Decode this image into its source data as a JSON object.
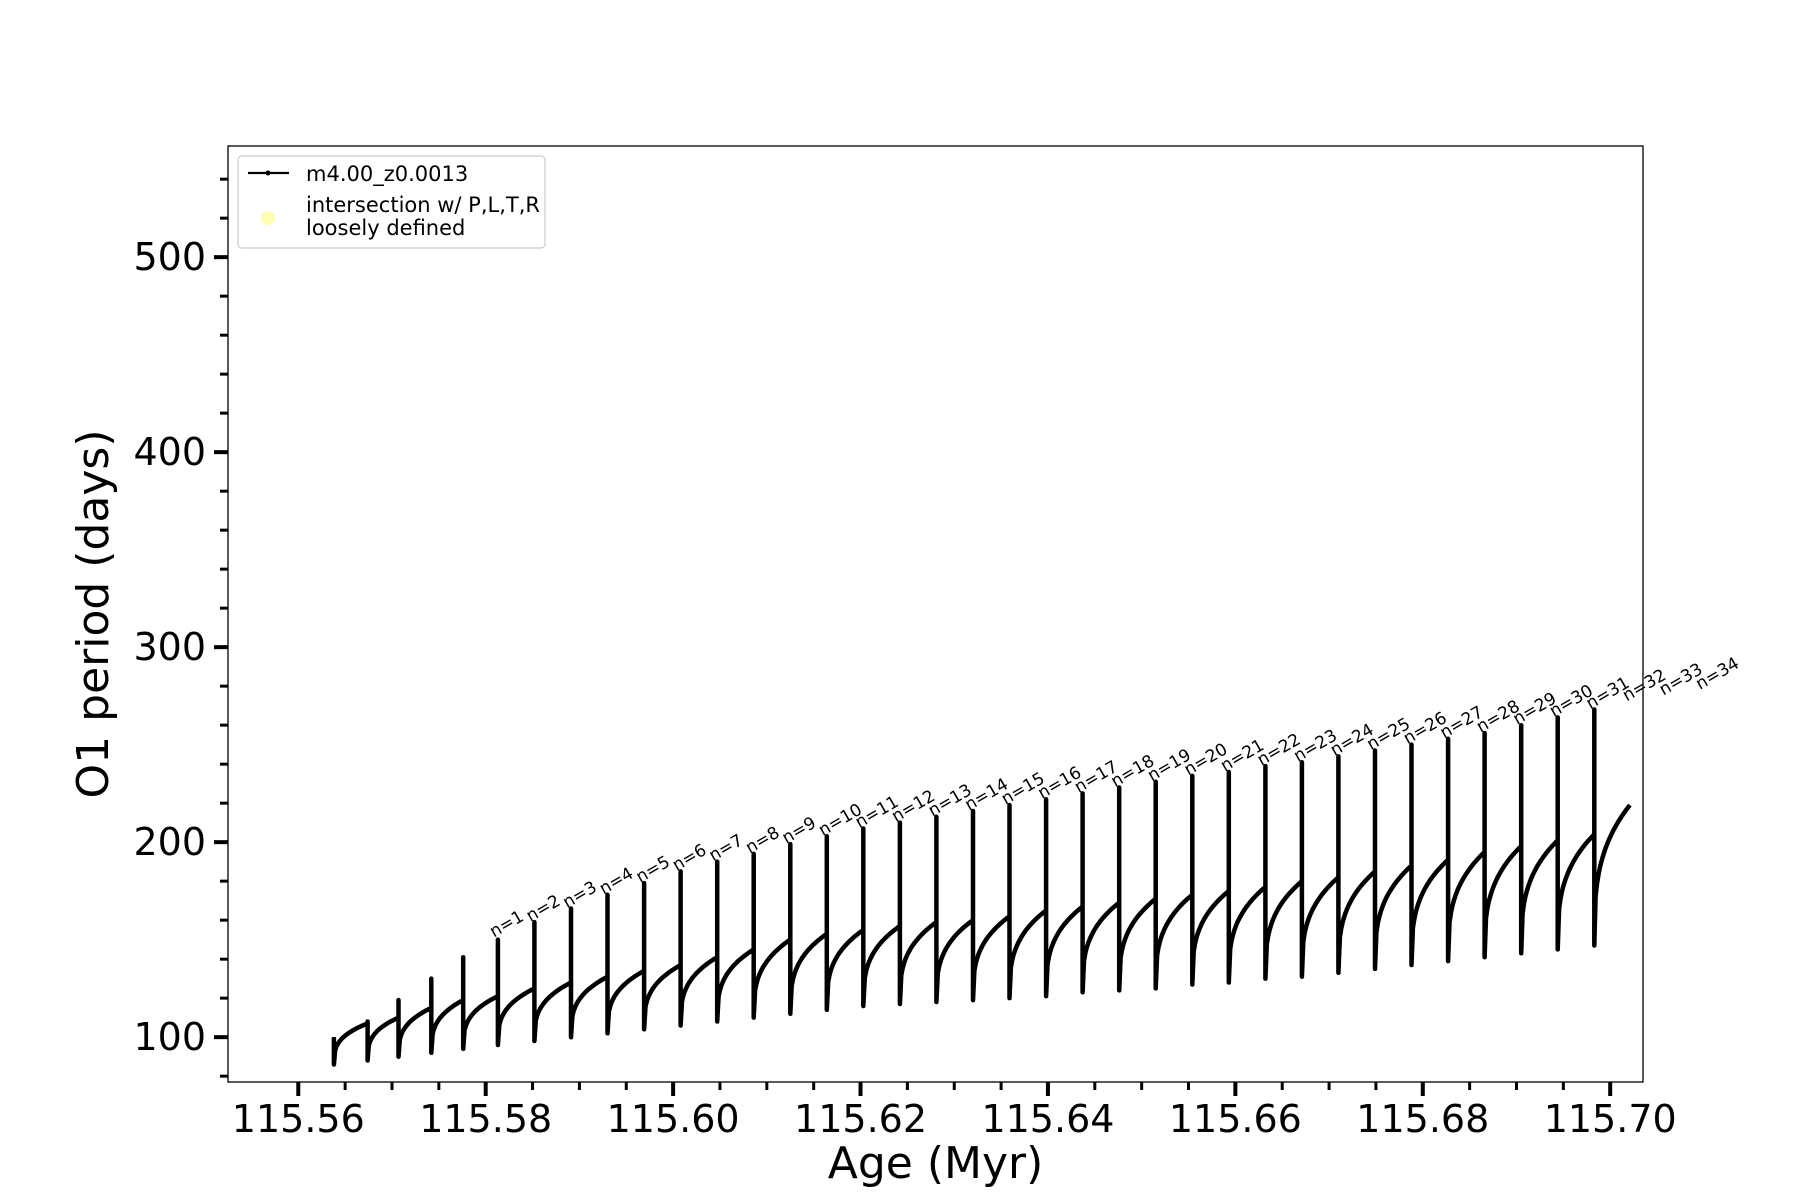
{
  "chart_data": {
    "type": "line",
    "xlabel": "Age (Myr)",
    "ylabel": "O1 period (days)",
    "xlim": [
      115.5525,
      115.7035
    ],
    "ylim": [
      77,
      557
    ],
    "xticks": [
      115.56,
      115.58,
      115.6,
      115.62,
      115.64,
      115.66,
      115.68,
      115.7
    ],
    "xtick_labels": [
      "115.56",
      "115.58",
      "115.60",
      "115.62",
      "115.64",
      "115.66",
      "115.68",
      "115.70"
    ],
    "yticks": [
      100,
      200,
      300,
      400,
      500
    ],
    "ytick_labels": [
      "100",
      "200",
      "300",
      "400",
      "500"
    ],
    "grid": false,
    "legend": {
      "placement": "top-left",
      "entries": [
        {
          "label": "m4.00_z0.0013",
          "color": "#000000",
          "marker": "line-dot"
        },
        {
          "label_lines": [
            "intersection w/ P,L,T,R",
            "loosely defined"
          ],
          "color": "#ffffb3",
          "marker": "circle"
        }
      ]
    },
    "series": [
      {
        "name": "m4.00_z0.0013",
        "color": "#000000",
        "pulse_start_ages": [
          115.5638,
          115.5674,
          115.5707,
          115.5742,
          115.5776,
          115.5813,
          115.5852,
          115.5891,
          115.593,
          115.5969,
          115.6008,
          115.6047,
          115.6086,
          115.6125,
          115.6164,
          115.6203,
          115.6242,
          115.6281,
          115.632,
          115.6359,
          115.6398,
          115.6437,
          115.6476,
          115.6515,
          115.6554,
          115.6593,
          115.6632,
          115.6671,
          115.671,
          115.6749,
          115.6788,
          115.6827,
          115.6866,
          115.6905,
          115.6944,
          115.6983
        ],
        "pulse_peak_periods": [
          100,
          108,
          119,
          130,
          141,
          150,
          159,
          166,
          173,
          179,
          185,
          190,
          194,
          199,
          203,
          207,
          210,
          213,
          216,
          219,
          222,
          225,
          228,
          231,
          234,
          236,
          239,
          241,
          244,
          247,
          250,
          253,
          256,
          260,
          264,
          268
        ],
        "pulse_min_periods": [
          86,
          88,
          90,
          92,
          94,
          96,
          98,
          100,
          102,
          104,
          106,
          108,
          110,
          112,
          114,
          116,
          117,
          118,
          119,
          120,
          121,
          123,
          124,
          125,
          127,
          128,
          130,
          131,
          133,
          135,
          137,
          139,
          141,
          143,
          145,
          147
        ],
        "pulse_plateau_periods": [
          107,
          110,
          115,
          119,
          121,
          125,
          128,
          131,
          134,
          137,
          141,
          145,
          150,
          153,
          155,
          157,
          159,
          160,
          162,
          165,
          167,
          169,
          171,
          173,
          175,
          177,
          180,
          182,
          185,
          188,
          191,
          195,
          198,
          201,
          204,
          207
        ],
        "end_age": 115.7021,
        "end_period": 219
      }
    ],
    "annotations": [
      {
        "text": "n=1",
        "x": 115.5813,
        "y": 149
      },
      {
        "text": "n=2",
        "x": 115.5852,
        "y": 157
      },
      {
        "text": "n=3",
        "x": 115.5891,
        "y": 164
      },
      {
        "text": "n=4",
        "x": 115.593,
        "y": 171
      },
      {
        "text": "n=5",
        "x": 115.5969,
        "y": 177
      },
      {
        "text": "n=6",
        "x": 115.6008,
        "y": 183
      },
      {
        "text": "n=7",
        "x": 115.6047,
        "y": 188
      },
      {
        "text": "n=8",
        "x": 115.6086,
        "y": 192
      },
      {
        "text": "n=9",
        "x": 115.6125,
        "y": 197
      },
      {
        "text": "n=10",
        "x": 115.6164,
        "y": 201
      },
      {
        "text": "n=11",
        "x": 115.6203,
        "y": 205
      },
      {
        "text": "n=12",
        "x": 115.6242,
        "y": 208
      },
      {
        "text": "n=13",
        "x": 115.6281,
        "y": 211
      },
      {
        "text": "n=14",
        "x": 115.632,
        "y": 214
      },
      {
        "text": "n=15",
        "x": 115.6359,
        "y": 217
      },
      {
        "text": "n=16",
        "x": 115.6398,
        "y": 220
      },
      {
        "text": "n=17",
        "x": 115.6437,
        "y": 223
      },
      {
        "text": "n=18",
        "x": 115.6476,
        "y": 226
      },
      {
        "text": "n=19",
        "x": 115.6515,
        "y": 229
      },
      {
        "text": "n=20",
        "x": 115.6554,
        "y": 232
      },
      {
        "text": "n=21",
        "x": 115.6593,
        "y": 234
      },
      {
        "text": "n=22",
        "x": 115.6632,
        "y": 237
      },
      {
        "text": "n=23",
        "x": 115.6671,
        "y": 239
      },
      {
        "text": "n=24",
        "x": 115.671,
        "y": 242
      },
      {
        "text": "n=25",
        "x": 115.6749,
        "y": 245
      },
      {
        "text": "n=26",
        "x": 115.6788,
        "y": 248
      },
      {
        "text": "n=27",
        "x": 115.6827,
        "y": 251
      },
      {
        "text": "n=28",
        "x": 115.6866,
        "y": 254
      },
      {
        "text": "n=29",
        "x": 115.6905,
        "y": 258
      },
      {
        "text": "n=30",
        "x": 115.6944,
        "y": 262
      },
      {
        "text": "n=31",
        "x": 115.6983,
        "y": 266
      },
      {
        "text": "n=32",
        "x": 115.7022,
        "y": 270
      },
      {
        "text": "n=33",
        "x": 115.7061,
        "y": 273
      },
      {
        "text": "n=34",
        "x": 115.71,
        "y": 276
      }
    ]
  }
}
